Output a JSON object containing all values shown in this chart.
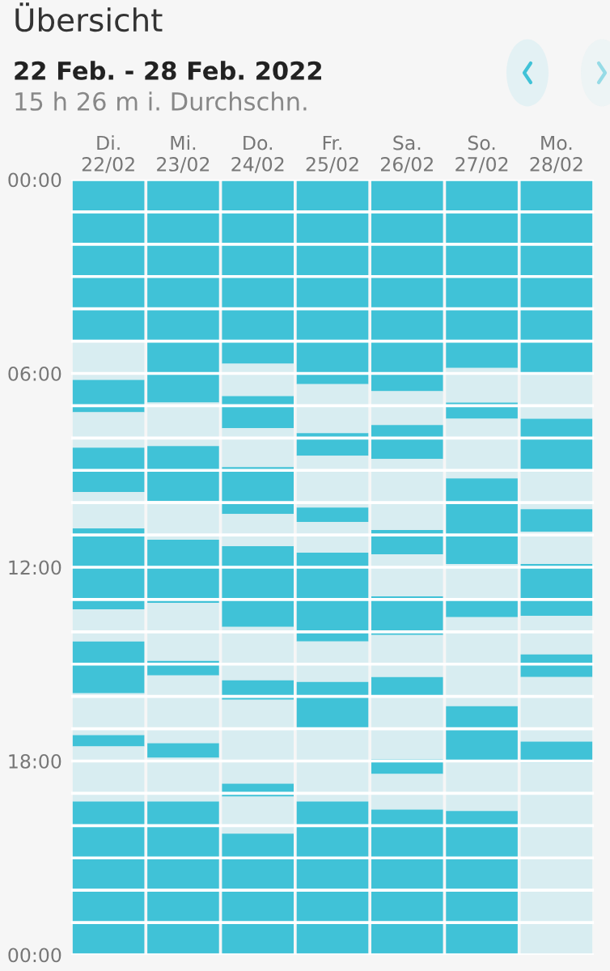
{
  "chart_data": {
    "type": "bar",
    "title": "Übersicht",
    "subtitle": "22 Feb. - 28 Feb. 2022",
    "annotations": [
      "15 h 26 m i. Durchschn."
    ],
    "categories": [
      "Di.\n22/02",
      "Mi.\n23/02",
      "Do.\n24/02",
      "Fr.\n25/02",
      "Sa.\n26/02",
      "So.\n27/02",
      "Mo.\n28/02"
    ],
    "stacked": true,
    "ylim": [
      24,
      0
    ],
    "yticks": [
      {
        "value": 0,
        "label": "00:00"
      },
      {
        "value": 1,
        "label": null
      },
      {
        "value": 2,
        "label": null
      },
      {
        "value": 3,
        "label": null
      },
      {
        "value": 4,
        "label": null
      },
      {
        "value": 5,
        "label": null
      },
      {
        "value": 6,
        "label": "06:00"
      },
      {
        "value": 7,
        "label": null
      },
      {
        "value": 8,
        "label": null
      },
      {
        "value": 9,
        "label": null
      },
      {
        "value": 10,
        "label": null
      },
      {
        "value": 11,
        "label": null
      },
      {
        "value": 12,
        "label": "12:00"
      },
      {
        "value": 13,
        "label": null
      },
      {
        "value": 14,
        "label": null
      },
      {
        "value": 15,
        "label": null
      },
      {
        "value": 16,
        "label": null
      },
      {
        "value": 17,
        "label": null
      },
      {
        "value": 18,
        "label": "18:00"
      },
      {
        "value": 19,
        "label": null
      },
      {
        "value": 20,
        "label": null
      },
      {
        "value": 21,
        "label": null
      },
      {
        "value": 22,
        "label": null
      },
      {
        "value": 23,
        "label": null
      },
      {
        "value": 24,
        "label": "00:00"
      }
    ],
    "grid": "y",
    "legend": false,
    "series": [
      {
        "color": "#40c2d7",
        "values": [
          5.0,
          6.9,
          5.7,
          6.33,
          6.55,
          5.83,
          6.0
        ]
      },
      {
        "color": "#d8edf1",
        "values": [
          1.2,
          1.35,
          1.0,
          1.52,
          1.05,
          1.07,
          1.4
        ]
      },
      {
        "color": "#40c2d7",
        "values": [
          1.0,
          1.7,
          1.0,
          0.7,
          1.05,
          0.5,
          1.65
        ]
      },
      {
        "color": "#d8edf1",
        "values": [
          1.1,
          1.2,
          1.2,
          1.6,
          2.2,
          1.85,
          1.15
        ]
      },
      {
        "color": "#40c2d7",
        "values": [
          1.37,
          1.95,
          1.45,
          0.45,
          0.75,
          2.65,
          0.7
        ]
      },
      {
        "color": "#d8edf1",
        "values": [
          1.13,
          1.8,
          1.0,
          0.95,
          1.3,
          1.05,
          1.0
        ]
      },
      {
        "color": "#40c2d7",
        "values": [
          2.5,
          0.45,
          2.5,
          2.75,
          1.2,
          0.6,
          1.6
        ]
      },
      {
        "color": "#d8edf1",
        "values": [
          1.0,
          2.1,
          1.65,
          1.25,
          1.3,
          2.75,
          1.2
        ]
      },
      {
        "color": "#40c2d7",
        "values": [
          1.6,
          0.45,
          0.6,
          1.5,
          0.6,
          1.7,
          0.7
        ]
      },
      {
        "color": "#d8edf1",
        "values": [
          1.3,
          1.35,
          2.6,
          2.2,
          1.95,
          1.55,
          2.0
        ]
      },
      {
        "color": "#40c2d7",
        "values": [
          0.35,
          4.75,
          0.4,
          4.75,
          0.45,
          4.45,
          0.65
        ]
      },
      {
        "color": "#d8edf1",
        "values": [
          1.7,
          null,
          1.15,
          null,
          1.1,
          null,
          5.95
        ]
      },
      {
        "color": "#40c2d7",
        "values": [
          4.75,
          null,
          3.75,
          null,
          4.5,
          null,
          null
        ]
      }
    ]
  }
}
